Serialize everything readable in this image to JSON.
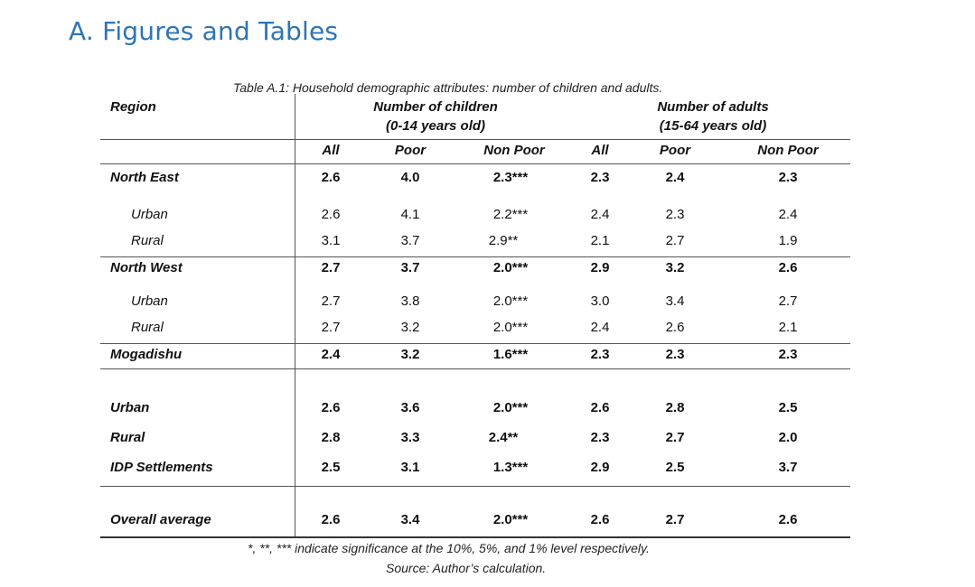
{
  "heading": "A. Figures and Tables",
  "caption": "Table A.1: Household demographic attributes: number of children and adults.",
  "header": {
    "region": "Region",
    "children_group": [
      "Number of children",
      "(0-14 years old)"
    ],
    "adults_group": [
      "Number of adults",
      "(15-64 years old)"
    ],
    "subcols": [
      "All",
      "Poor",
      "Non Poor",
      "All",
      "Poor",
      "Non Poor"
    ]
  },
  "rows": [
    {
      "label": "North East",
      "values": [
        "2.6",
        "4.0",
        "2.3***",
        "2.3",
        "2.4",
        "2.3"
      ]
    },
    {
      "label": "Urban",
      "values": [
        "2.6",
        "4.1",
        "2.2***",
        "2.4",
        "2.3",
        "2.4"
      ]
    },
    {
      "label": "Rural",
      "values": [
        "3.1",
        "3.7",
        "2.9**",
        "2.1",
        "2.7",
        "1.9"
      ]
    },
    {
      "label": "North West",
      "values": [
        "2.7",
        "3.7",
        "2.0***",
        "2.9",
        "3.2",
        "2.6"
      ]
    },
    {
      "label": "Urban",
      "values": [
        "2.7",
        "3.8",
        "2.0***",
        "3.0",
        "3.4",
        "2.7"
      ]
    },
    {
      "label": "Rural",
      "values": [
        "2.7",
        "3.2",
        "2.0***",
        "2.4",
        "2.6",
        "2.1"
      ]
    },
    {
      "label": "Mogadishu",
      "values": [
        "2.4",
        "3.2",
        "1.6***",
        "2.3",
        "2.3",
        "2.3"
      ]
    },
    {
      "label": "Urban",
      "values": [
        "2.6",
        "3.6",
        "2.0***",
        "2.6",
        "2.8",
        "2.5"
      ]
    },
    {
      "label": "Rural",
      "values": [
        "2.8",
        "3.3",
        "2.4**",
        "2.3",
        "2.7",
        "2.0"
      ]
    },
    {
      "label": "IDP Settlements",
      "values": [
        "2.5",
        "3.1",
        "1.3***",
        "2.9",
        "2.5",
        "3.7"
      ]
    },
    {
      "label": "Overall average",
      "values": [
        "2.6",
        "3.4",
        "2.0***",
        "2.6",
        "2.7",
        "2.6"
      ]
    }
  ],
  "footnote": "*, **, *** indicate significance at the 10%, 5%, and 1% level respectively.",
  "source": "Source: Author’s calculation."
}
